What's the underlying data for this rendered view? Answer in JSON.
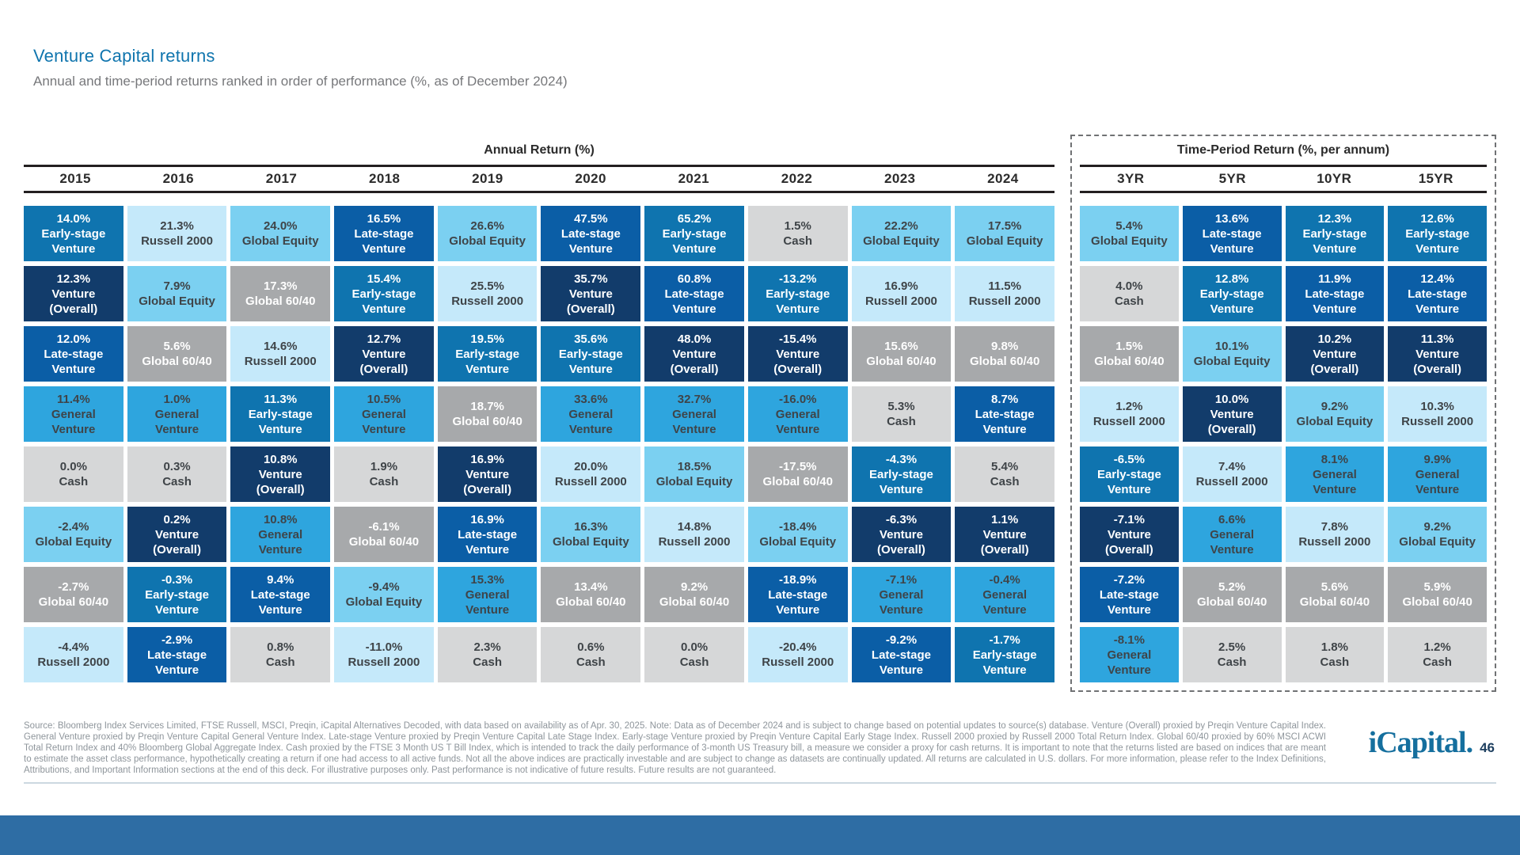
{
  "chart_data": {
    "type": "table",
    "title": "Venture Capital returns",
    "subtitle": "Annual and time-period returns ranked in order of performance (%, as of December 2024)",
    "layout": "periodic-table-of-returns; cells ranked best-to-worst top-to-bottom per column; time-period section outlined with dashed border",
    "asset_classes": {
      "early": {
        "label": "Early-stage Venture",
        "bg": "#0f74af",
        "text_color": "#ffffff"
      },
      "late": {
        "label": "Late-stage Venture",
        "bg": "#0b5ea6",
        "text_color": "#ffffff"
      },
      "overall": {
        "label": "Venture (Overall)",
        "bg": "#123c6b",
        "text_color": "#ffffff"
      },
      "general": {
        "label": "General Venture",
        "bg": "#2ea5de",
        "text_color": "#3f4448"
      },
      "equity": {
        "label": "Global Equity",
        "bg": "#7bd0f1",
        "text_color": "#3f4448"
      },
      "russell": {
        "label": "Russell 2000",
        "bg": "#c5e9fa",
        "text_color": "#3f4448"
      },
      "sixforty": {
        "label": "Global 60/40",
        "bg": "#a7a9ab",
        "text_color": "#ffffff"
      },
      "cash": {
        "label": "Cash",
        "bg": "#d6d7d8",
        "text_color": "#3f4448"
      }
    },
    "sections": [
      {
        "header": "Annual Return (%)",
        "columns": [
          {
            "label": "2015",
            "cells": [
              [
                "14.0%",
                "early"
              ],
              [
                "12.3%",
                "overall"
              ],
              [
                "12.0%",
                "late"
              ],
              [
                "11.4%",
                "general"
              ],
              [
                "0.0%",
                "cash"
              ],
              [
                "-2.4%",
                "equity"
              ],
              [
                "-2.7%",
                "sixforty"
              ],
              [
                "-4.4%",
                "russell"
              ]
            ]
          },
          {
            "label": "2016",
            "cells": [
              [
                "21.3%",
                "russell"
              ],
              [
                "7.9%",
                "equity"
              ],
              [
                "5.6%",
                "sixforty"
              ],
              [
                "1.0%",
                "general"
              ],
              [
                "0.3%",
                "cash"
              ],
              [
                "0.2%",
                "overall"
              ],
              [
                "-0.3%",
                "early"
              ],
              [
                "-2.9%",
                "late"
              ]
            ]
          },
          {
            "label": "2017",
            "cells": [
              [
                "24.0%",
                "equity"
              ],
              [
                "17.3%",
                "sixforty"
              ],
              [
                "14.6%",
                "russell"
              ],
              [
                "11.3%",
                "early"
              ],
              [
                "10.8%",
                "overall"
              ],
              [
                "10.8%",
                "general"
              ],
              [
                "9.4%",
                "late"
              ],
              [
                "0.8%",
                "cash"
              ]
            ]
          },
          {
            "label": "2018",
            "cells": [
              [
                "16.5%",
                "late"
              ],
              [
                "15.4%",
                "early"
              ],
              [
                "12.7%",
                "overall"
              ],
              [
                "10.5%",
                "general"
              ],
              [
                "1.9%",
                "cash"
              ],
              [
                "-6.1%",
                "sixforty"
              ],
              [
                "-9.4%",
                "equity"
              ],
              [
                "-11.0%",
                "russell"
              ]
            ]
          },
          {
            "label": "2019",
            "cells": [
              [
                "26.6%",
                "equity"
              ],
              [
                "25.5%",
                "russell"
              ],
              [
                "19.5%",
                "early"
              ],
              [
                "18.7%",
                "sixforty"
              ],
              [
                "16.9%",
                "overall"
              ],
              [
                "16.9%",
                "late"
              ],
              [
                "15.3%",
                "general"
              ],
              [
                "2.3%",
                "cash"
              ]
            ]
          },
          {
            "label": "2020",
            "cells": [
              [
                "47.5%",
                "late"
              ],
              [
                "35.7%",
                "overall"
              ],
              [
                "35.6%",
                "early"
              ],
              [
                "33.6%",
                "general"
              ],
              [
                "20.0%",
                "russell"
              ],
              [
                "16.3%",
                "equity"
              ],
              [
                "13.4%",
                "sixforty"
              ],
              [
                "0.6%",
                "cash"
              ]
            ]
          },
          {
            "label": "2021",
            "cells": [
              [
                "65.2%",
                "early"
              ],
              [
                "60.8%",
                "late"
              ],
              [
                "48.0%",
                "overall"
              ],
              [
                "32.7%",
                "general"
              ],
              [
                "18.5%",
                "equity"
              ],
              [
                "14.8%",
                "russell"
              ],
              [
                "9.2%",
                "sixforty"
              ],
              [
                "0.0%",
                "cash"
              ]
            ]
          },
          {
            "label": "2022",
            "cells": [
              [
                "1.5%",
                "cash"
              ],
              [
                "-13.2%",
                "early"
              ],
              [
                "-15.4%",
                "overall"
              ],
              [
                "-16.0%",
                "general"
              ],
              [
                "-17.5%",
                "sixforty"
              ],
              [
                "-18.4%",
                "equity"
              ],
              [
                "-18.9%",
                "late"
              ],
              [
                "-20.4%",
                "russell"
              ]
            ]
          },
          {
            "label": "2023",
            "cells": [
              [
                "22.2%",
                "equity"
              ],
              [
                "16.9%",
                "russell"
              ],
              [
                "15.6%",
                "sixforty"
              ],
              [
                "5.3%",
                "cash"
              ],
              [
                "-4.3%",
                "early"
              ],
              [
                "-6.3%",
                "overall"
              ],
              [
                "-7.1%",
                "general"
              ],
              [
                "-9.2%",
                "late"
              ]
            ]
          },
          {
            "label": "2024",
            "cells": [
              [
                "17.5%",
                "equity"
              ],
              [
                "11.5%",
                "russell"
              ],
              [
                "9.8%",
                "sixforty"
              ],
              [
                "8.7%",
                "late"
              ],
              [
                "5.4%",
                "cash"
              ],
              [
                "1.1%",
                "overall"
              ],
              [
                "-0.4%",
                "general"
              ],
              [
                "-1.7%",
                "early"
              ]
            ]
          }
        ]
      },
      {
        "header": "Time-Period Return (%, per annum)",
        "columns": [
          {
            "label": "3YR",
            "cells": [
              [
                "5.4%",
                "equity"
              ],
              [
                "4.0%",
                "cash"
              ],
              [
                "1.5%",
                "sixforty"
              ],
              [
                "1.2%",
                "russell"
              ],
              [
                "-6.5%",
                "early"
              ],
              [
                "-7.1%",
                "overall"
              ],
              [
                "-7.2%",
                "late"
              ],
              [
                "-8.1%",
                "general"
              ]
            ]
          },
          {
            "label": "5YR",
            "cells": [
              [
                "13.6%",
                "late"
              ],
              [
                "12.8%",
                "early"
              ],
              [
                "10.1%",
                "equity"
              ],
              [
                "10.0%",
                "overall"
              ],
              [
                "7.4%",
                "russell"
              ],
              [
                "6.6%",
                "general"
              ],
              [
                "5.2%",
                "sixforty"
              ],
              [
                "2.5%",
                "cash"
              ]
            ]
          },
          {
            "label": "10YR",
            "cells": [
              [
                "12.3%",
                "early"
              ],
              [
                "11.9%",
                "late"
              ],
              [
                "10.2%",
                "overall"
              ],
              [
                "9.2%",
                "equity"
              ],
              [
                "8.1%",
                "general"
              ],
              [
                "7.8%",
                "russell"
              ],
              [
                "5.6%",
                "sixforty"
              ],
              [
                "1.8%",
                "cash"
              ]
            ]
          },
          {
            "label": "15YR",
            "cells": [
              [
                "12.6%",
                "early"
              ],
              [
                "12.4%",
                "late"
              ],
              [
                "11.3%",
                "overall"
              ],
              [
                "10.3%",
                "russell"
              ],
              [
                "9.9%",
                "general"
              ],
              [
                "9.2%",
                "equity"
              ],
              [
                "5.9%",
                "sixforty"
              ],
              [
                "1.2%",
                "cash"
              ]
            ]
          }
        ]
      }
    ]
  },
  "footer": {
    "disclaimer": "Source: Bloomberg Index Services Limited, FTSE Russell, MSCI, Preqin, iCapital Alternatives Decoded, with data based on availability as of Apr. 30, 2025. Note: Data as of December 2024 and is subject to change based on potential updates to source(s) database. Venture (Overall) proxied by Preqin Venture Capital Index. General Venture proxied by Preqin Venture Capital General Venture Index. Late-stage Venture proxied by Preqin Venture Capital Late Stage Index. Early-stage Venture proxied by Preqin Venture Capital Early Stage Index. Russell 2000 proxied by Russell 2000 Total Return Index. Global 60/40 proxied by 60% MSCI ACWI Total Return Index and 40% Bloomberg Global Aggregate Index. Cash proxied by the FTSE 3 Month US T Bill Index, which is intended to track the daily performance of 3-month US Treasury bill, a measure we consider a proxy for cash returns. It is important to note that the returns listed are based on indices that are meant to estimate the asset class performance, hypothetically creating a return if one had access to all active funds. Not all the above indices are practically investable and are subject to change as datasets are continually updated. All returns are calculated in U.S. dollars. For more information, please refer to the Index Definitions, Attributions, and Important Information sections at the end of this deck. For illustrative purposes only. Past performance is not indicative of future results. Future results are not guaranteed.",
    "logo_text": "iCapital.",
    "page_number": "46"
  }
}
